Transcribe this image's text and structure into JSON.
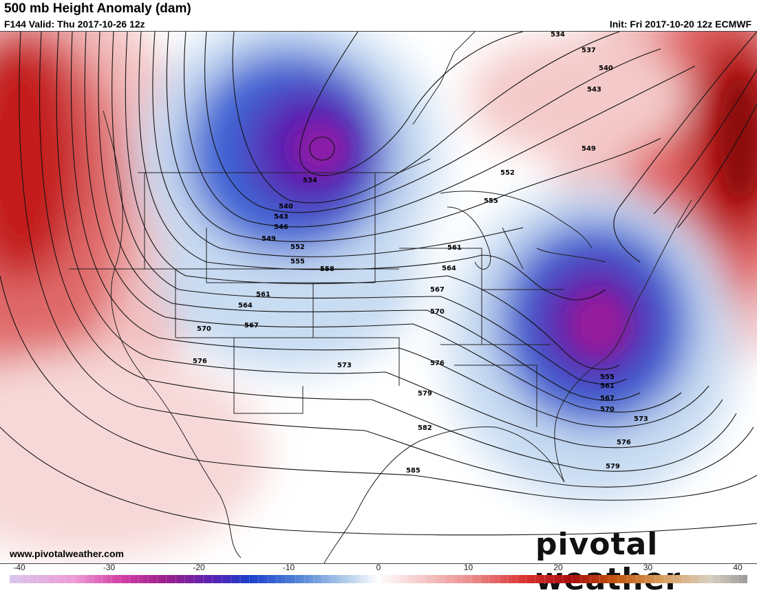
{
  "header": {
    "title": "500 mb Height Anomaly (dam)",
    "valid": "F144 Valid: Thu 2017-10-26 12z",
    "init": "Init: Fri 2017-10-20 12z ECMWF"
  },
  "footer": {
    "url": "www.pivotalweather.com",
    "brand": "pivotal weather"
  },
  "colorbar": {
    "ticks": [
      "-40",
      "-30",
      "-20",
      "-10",
      "0",
      "10",
      "20",
      "30",
      "40"
    ],
    "range": [
      -40,
      40
    ],
    "stops": [
      {
        "v": -40,
        "c": "#d9c6ec"
      },
      {
        "v": -33,
        "c": "#ee9bd6"
      },
      {
        "v": -28,
        "c": "#d23fa5"
      },
      {
        "v": -23,
        "c": "#9a1f8c"
      },
      {
        "v": -18,
        "c": "#5a22b4"
      },
      {
        "v": -14,
        "c": "#1d3fcb"
      },
      {
        "v": -9,
        "c": "#4d7fd6"
      },
      {
        "v": -4,
        "c": "#a8c6e8"
      },
      {
        "v": 0,
        "c": "#ffffff"
      },
      {
        "v": 4,
        "c": "#f7d0d0"
      },
      {
        "v": 10,
        "c": "#ec8d8d"
      },
      {
        "v": 16,
        "c": "#d83030"
      },
      {
        "v": 21,
        "c": "#a80d0d"
      },
      {
        "v": 26,
        "c": "#c45a10"
      },
      {
        "v": 31,
        "c": "#d9a060"
      },
      {
        "v": 36,
        "c": "#d8cfc0"
      },
      {
        "v": 40,
        "c": "#9b9b9b"
      }
    ]
  },
  "contour_labels": [
    "534",
    "537",
    "540",
    "543",
    "549",
    "552",
    "555",
    "561",
    "564",
    "567",
    "570",
    "576",
    "579",
    "582",
    "585",
    "546",
    "558",
    "573"
  ],
  "colors": {
    "deep_low": "#6b1496",
    "blue": "#2148c8",
    "light_blue": "#c6dcf2",
    "red": "#c81818",
    "light_red": "#f2b8b8"
  }
}
